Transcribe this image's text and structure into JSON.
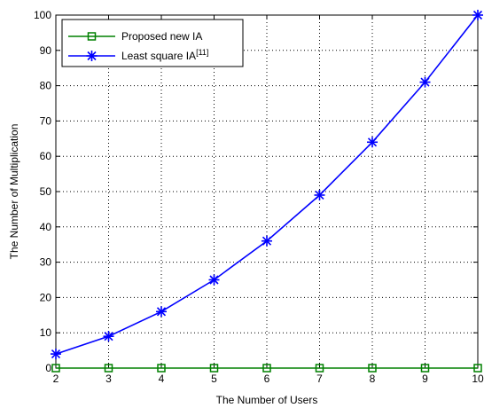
{
  "chart_data": {
    "type": "line",
    "title": "",
    "xlabel": "The Number of Users",
    "ylabel": "The Number of Multiplication",
    "x": [
      2,
      3,
      4,
      5,
      6,
      7,
      8,
      9,
      10
    ],
    "xlim": [
      2,
      10
    ],
    "ylim": [
      0,
      100
    ],
    "xticks": [
      2,
      3,
      4,
      5,
      6,
      7,
      8,
      9,
      10
    ],
    "yticks": [
      0,
      10,
      20,
      30,
      40,
      50,
      60,
      70,
      80,
      90,
      100
    ],
    "grid": true,
    "legend_position": "top-left",
    "series": [
      {
        "name": "Proposed new IA",
        "marker": "square",
        "color": "#008000",
        "values": [
          0,
          0,
          0,
          0,
          0,
          0,
          0,
          0,
          0
        ]
      },
      {
        "name": "Least square IA",
        "name_superscript": "[11]",
        "marker": "asterisk",
        "color": "#0000ff",
        "values": [
          4,
          9,
          16,
          25,
          36,
          49,
          64,
          81,
          100
        ]
      }
    ]
  }
}
